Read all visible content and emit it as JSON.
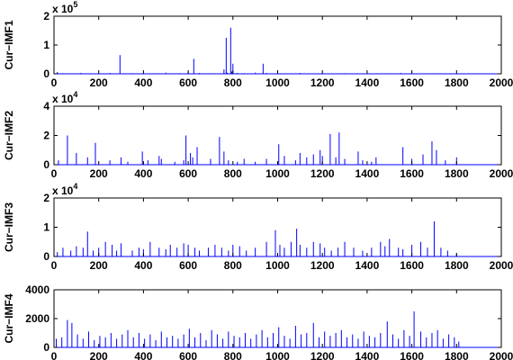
{
  "chart_data": [
    {
      "type": "line",
      "ylabel": "Cur−IMF1",
      "ylim": [
        0,
        2
      ],
      "yticks": [
        "0",
        "1",
        "2"
      ],
      "ytick_values": [
        0,
        1,
        2
      ],
      "exponent": {
        "base": "x 10",
        "power": "5"
      },
      "xlim": [
        0,
        2000
      ],
      "xticks": [
        "0",
        "200",
        "400",
        "600",
        "800",
        "1000",
        "1200",
        "1400",
        "1600",
        "1800",
        "2000"
      ],
      "line_color": "#0000ff",
      "x": [
        8,
        15,
        40,
        80,
        120,
        200,
        250,
        295,
        350,
        400,
        450,
        500,
        560,
        600,
        625,
        650,
        700,
        760,
        770,
        775,
        790,
        795,
        800,
        820,
        850,
        900,
        935,
        950,
        1000,
        1100,
        1200,
        1300,
        1400,
        1500,
        1550,
        1600,
        1700,
        1800
      ],
      "y": [
        0.01,
        0.06,
        0.02,
        0.01,
        0.03,
        0.02,
        0.03,
        0.65,
        0.02,
        0.03,
        0.02,
        0.04,
        0.02,
        0.06,
        0.52,
        0.03,
        0.02,
        0.15,
        1.25,
        0.04,
        1.6,
        0.08,
        0.35,
        0.03,
        0.02,
        0.04,
        0.35,
        0.03,
        0.02,
        0.03,
        0.02,
        0.02,
        0.02,
        0.02,
        0.03,
        0.02,
        0.02,
        0.02
      ]
    },
    {
      "type": "line",
      "ylabel": "Cur−IMF2",
      "ylim": [
        0,
        4
      ],
      "yticks": [
        "0",
        "2",
        "4"
      ],
      "ytick_values": [
        0,
        2,
        4
      ],
      "exponent": {
        "base": "x 10",
        "power": "4"
      },
      "xlim": [
        0,
        2000
      ],
      "xticks": [
        "0",
        "200",
        "400",
        "600",
        "800",
        "1000",
        "1200",
        "1400",
        "1600",
        "1800",
        "2000"
      ],
      "line_color": "#0000ff",
      "x": [
        20,
        60,
        100,
        150,
        185,
        250,
        300,
        330,
        395,
        420,
        470,
        480,
        540,
        580,
        590,
        610,
        620,
        640,
        700,
        740,
        760,
        780,
        820,
        850,
        900,
        950,
        1005,
        1030,
        1080,
        1100,
        1130,
        1160,
        1190,
        1200,
        1235,
        1260,
        1275,
        1300,
        1360,
        1380,
        1420,
        1440,
        1560,
        1600,
        1650,
        1690,
        1710,
        1750,
        1800
      ],
      "y": [
        0.3,
        2.0,
        0.8,
        0.5,
        1.5,
        0.3,
        0.5,
        0.2,
        0.9,
        0.3,
        0.6,
        0.4,
        0.2,
        0.3,
        2.0,
        0.8,
        0.5,
        1.2,
        0.4,
        1.9,
        0.9,
        0.3,
        0.2,
        0.4,
        0.2,
        0.4,
        1.4,
        0.6,
        0.3,
        0.8,
        0.5,
        0.7,
        1.0,
        0.6,
        2.1,
        0.5,
        2.2,
        0.4,
        0.9,
        0.3,
        0.2,
        0.5,
        1.2,
        0.4,
        0.7,
        1.6,
        1.0,
        0.3,
        0.5
      ]
    },
    {
      "type": "line",
      "ylabel": "Cur−IMF3",
      "ylim": [
        0,
        2
      ],
      "yticks": [
        "0",
        "1",
        "2"
      ],
      "ytick_values": [
        0,
        1,
        2
      ],
      "exponent": {
        "base": "x 10",
        "power": "4"
      },
      "xlim": [
        0,
        2000
      ],
      "xticks": [
        "0",
        "200",
        "400",
        "600",
        "800",
        "1000",
        "1200",
        "1400",
        "1600",
        "1800",
        "2000"
      ],
      "line_color": "#0000ff",
      "x": [
        15,
        40,
        75,
        100,
        130,
        150,
        175,
        200,
        230,
        260,
        280,
        300,
        350,
        380,
        400,
        430,
        470,
        500,
        520,
        550,
        580,
        600,
        630,
        650,
        690,
        720,
        750,
        780,
        800,
        830,
        860,
        900,
        950,
        990,
        1010,
        1030,
        1060,
        1085,
        1100,
        1130,
        1160,
        1190,
        1210,
        1240,
        1270,
        1300,
        1340,
        1380,
        1420,
        1460,
        1480,
        1500,
        1540,
        1560,
        1600,
        1640,
        1670,
        1700,
        1730,
        1760,
        1800
      ],
      "y": [
        0.15,
        0.3,
        0.2,
        0.35,
        0.3,
        0.85,
        0.2,
        0.3,
        0.5,
        0.4,
        0.2,
        0.45,
        0.2,
        0.3,
        0.25,
        0.5,
        0.3,
        0.25,
        0.4,
        0.3,
        0.45,
        0.4,
        0.3,
        0.2,
        0.3,
        0.4,
        0.3,
        0.2,
        0.4,
        0.35,
        0.2,
        0.3,
        0.5,
        0.9,
        0.4,
        0.3,
        0.5,
        0.95,
        0.4,
        0.3,
        0.5,
        0.45,
        0.3,
        0.2,
        0.3,
        0.5,
        0.3,
        0.2,
        0.3,
        0.5,
        0.35,
        0.6,
        0.3,
        0.25,
        0.4,
        0.5,
        0.3,
        1.2,
        0.3,
        0.2,
        0.1
      ]
    },
    {
      "type": "line",
      "ylabel": "Cur−IMF4",
      "ylim": [
        0,
        4000
      ],
      "yticks": [
        "0",
        "2000",
        "4000"
      ],
      "ytick_values": [
        0,
        2000,
        4000
      ],
      "exponent": null,
      "xlim": [
        0,
        2000
      ],
      "xticks": [
        "0",
        "200",
        "400",
        "600",
        "800",
        "1000",
        "1200",
        "1400",
        "1600",
        "1800",
        "2000"
      ],
      "line_color": "#0000ff",
      "x": [
        10,
        35,
        60,
        80,
        105,
        130,
        155,
        180,
        205,
        230,
        255,
        280,
        305,
        330,
        355,
        380,
        405,
        430,
        455,
        480,
        505,
        530,
        555,
        580,
        605,
        630,
        655,
        680,
        705,
        730,
        755,
        780,
        805,
        830,
        855,
        880,
        905,
        930,
        955,
        980,
        1005,
        1030,
        1055,
        1080,
        1105,
        1130,
        1160,
        1185,
        1210,
        1235,
        1260,
        1285,
        1310,
        1335,
        1360,
        1385,
        1410,
        1435,
        1460,
        1490,
        1515,
        1540,
        1565,
        1590,
        1610,
        1640,
        1665,
        1690,
        1715,
        1740,
        1765,
        1790,
        1810
      ],
      "y": [
        600,
        700,
        1900,
        1700,
        900,
        600,
        1100,
        500,
        800,
        700,
        1000,
        600,
        900,
        1200,
        700,
        1000,
        600,
        900,
        500,
        1100,
        700,
        800,
        600,
        900,
        1300,
        700,
        1000,
        500,
        1200,
        900,
        600,
        1100,
        800,
        700,
        1000,
        600,
        900,
        1200,
        700,
        1000,
        1400,
        800,
        600,
        1500,
        900,
        1000,
        1700,
        700,
        1100,
        800,
        1000,
        1200,
        700,
        900,
        600,
        1100,
        800,
        700,
        1000,
        1800,
        900,
        600,
        1200,
        800,
        2500,
        1100,
        700,
        1000,
        1200,
        600,
        900,
        700,
        400
      ]
    }
  ]
}
